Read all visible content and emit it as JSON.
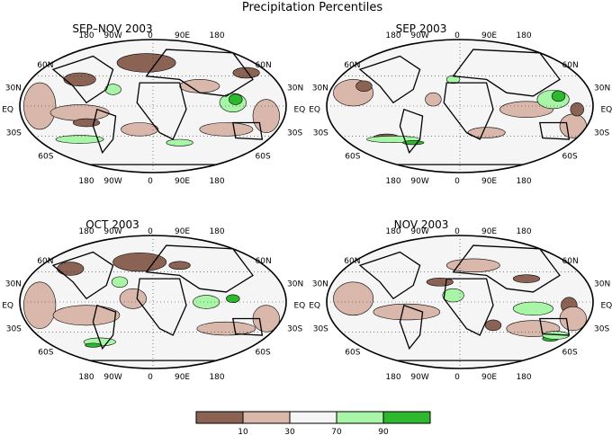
{
  "title": "Precipitation Percentiles",
  "panels": [
    {
      "title": "SEP–NOV 2003"
    },
    {
      "title": "SEP 2003"
    },
    {
      "title": "OCT 2003"
    },
    {
      "title": "NOV 2003"
    }
  ],
  "map_labels": {
    "top_lon": [
      "180",
      "90W",
      "0",
      "90E",
      "180"
    ],
    "bottom_lon": [
      "180",
      "90W",
      "0",
      "90E",
      "180"
    ],
    "left_lat": [
      "60N",
      "30N",
      "EQ",
      "30S",
      "60S"
    ],
    "right_lat": [
      "60N",
      "30N",
      "EQ",
      "30S",
      "60S"
    ]
  },
  "legend": {
    "colors": [
      "#8b6355",
      "#d9b7ab",
      "#f5f5f5",
      "#a8f5a8",
      "#2db82d"
    ],
    "labels": [
      "10",
      "30",
      "70",
      "90"
    ]
  },
  "colors": {
    "very_dry": "#8b6355",
    "dry": "#d9b7ab",
    "normal": "#f5f5f5",
    "wet": "#a8f5a8",
    "very_wet": "#2db82d"
  }
}
